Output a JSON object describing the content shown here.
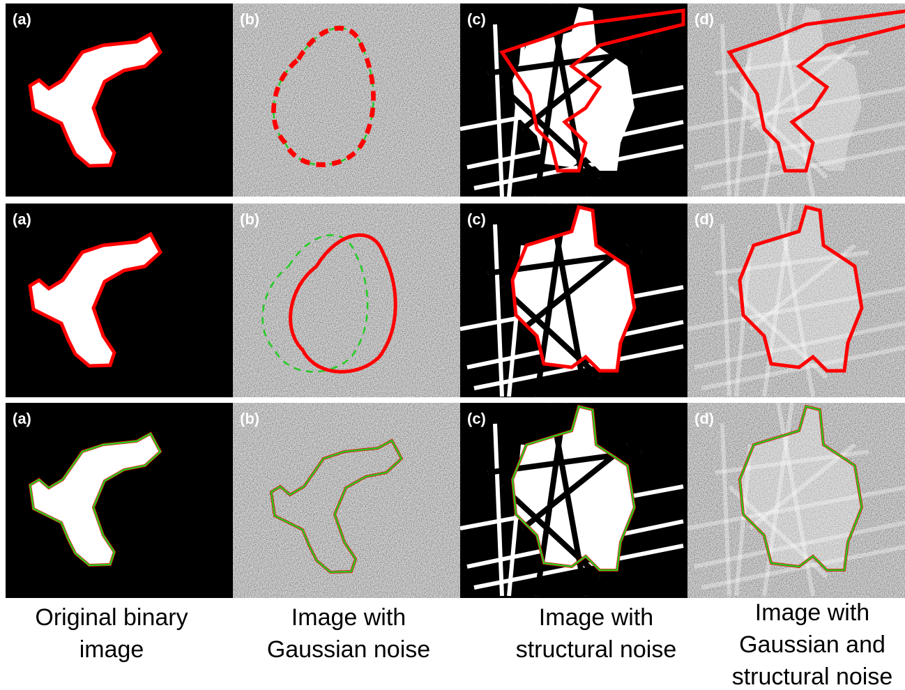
{
  "panels": [
    [
      "(a)",
      "(b)",
      "(c)",
      "(d)"
    ],
    [
      "(a)",
      "(b)",
      "(c)",
      "(d)"
    ],
    [
      "(a)",
      "(b)",
      "(c)",
      "(d)"
    ]
  ],
  "captions": [
    [
      "Original binary",
      "image"
    ],
    [
      "Image with",
      "Gaussian noise"
    ],
    [
      "Image with",
      "structural noise"
    ],
    [
      "Image with",
      "Gaussian and",
      "structural noise"
    ]
  ]
}
